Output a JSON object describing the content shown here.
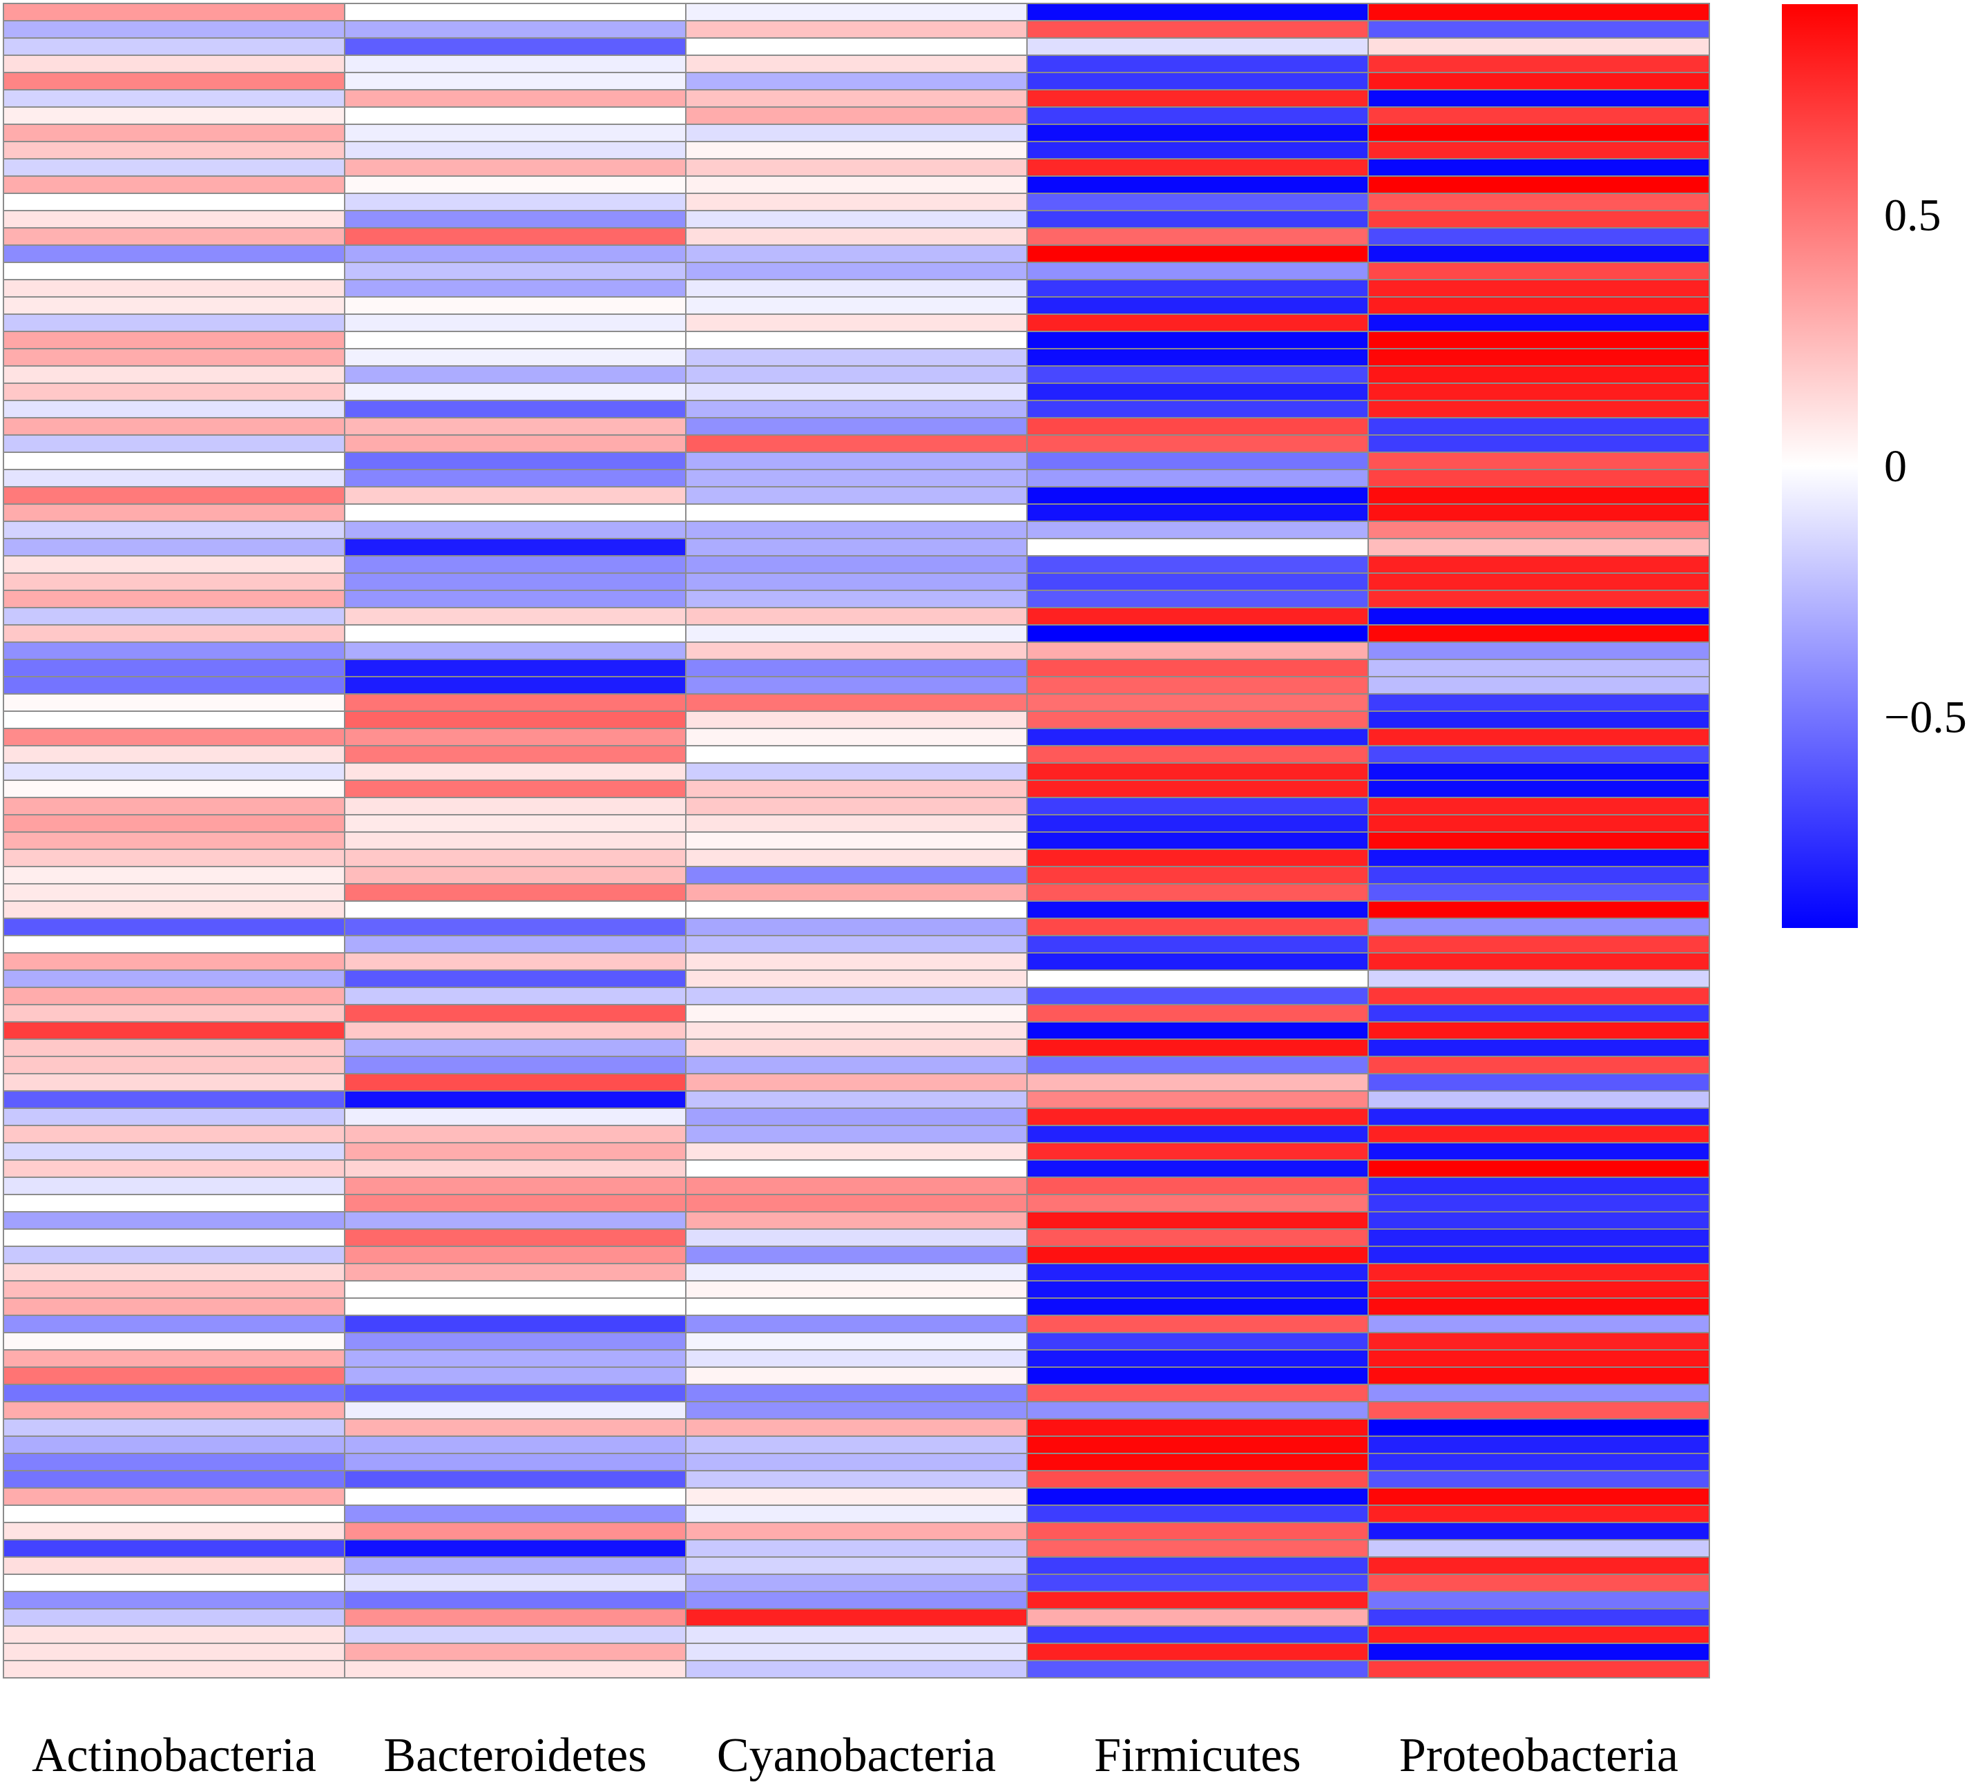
{
  "chart_data": {
    "type": "heatmap",
    "title": "",
    "xlabel": "",
    "ylabel": "",
    "columns": [
      "Actinobacteria",
      "Bacteroidetes",
      "Cyanobacteria",
      "Firmicutes",
      "Proteobacteria"
    ],
    "value_range": [
      -0.92,
      0.92
    ],
    "colorbar": {
      "ticks": [
        0.5,
        0,
        -0.5
      ],
      "tick_labels": [
        "0.5",
        "0",
        "−0.5"
      ],
      "colors": {
        "low": "#0000ff",
        "mid": "#ffffff",
        "high": "#ff0000"
      }
    },
    "values": [
      [
        0.36,
        0.0,
        -0.05,
        -0.89,
        0.9
      ],
      [
        -0.28,
        -0.3,
        0.22,
        0.62,
        -0.6
      ],
      [
        -0.18,
        -0.58,
        0.0,
        -0.12,
        0.12
      ],
      [
        0.12,
        -0.06,
        0.12,
        -0.7,
        0.74
      ],
      [
        0.44,
        -0.05,
        -0.28,
        -0.72,
        0.84
      ],
      [
        -0.16,
        0.3,
        0.22,
        0.78,
        -0.9
      ],
      [
        0.06,
        0.0,
        0.3,
        -0.7,
        0.7
      ],
      [
        0.3,
        -0.06,
        -0.12,
        -0.88,
        0.92
      ],
      [
        0.2,
        -0.1,
        0.04,
        -0.78,
        0.78
      ],
      [
        -0.16,
        0.28,
        0.18,
        0.78,
        -0.9
      ],
      [
        0.3,
        0.02,
        0.05,
        -0.9,
        0.92
      ],
      [
        0.0,
        -0.14,
        0.1,
        -0.58,
        0.6
      ],
      [
        0.1,
        -0.4,
        -0.1,
        -0.7,
        0.7
      ],
      [
        0.28,
        0.55,
        0.12,
        0.55,
        -0.65
      ],
      [
        -0.42,
        -0.32,
        -0.25,
        0.92,
        -0.88
      ],
      [
        0.0,
        -0.22,
        -0.3,
        -0.4,
        0.66
      ],
      [
        0.1,
        -0.32,
        -0.08,
        -0.72,
        0.8
      ],
      [
        0.08,
        0.02,
        -0.05,
        -0.8,
        0.82
      ],
      [
        -0.2,
        -0.06,
        0.1,
        0.8,
        -0.88
      ],
      [
        0.32,
        0.0,
        0.0,
        -0.9,
        0.92
      ],
      [
        0.3,
        -0.05,
        -0.2,
        -0.88,
        0.9
      ],
      [
        0.1,
        -0.3,
        -0.22,
        -0.66,
        0.84
      ],
      [
        0.2,
        -0.05,
        -0.1,
        -0.8,
        0.82
      ],
      [
        -0.1,
        -0.56,
        -0.28,
        -0.7,
        0.8
      ],
      [
        0.3,
        0.26,
        -0.4,
        0.66,
        -0.7
      ],
      [
        -0.2,
        0.3,
        0.58,
        0.6,
        -0.7
      ],
      [
        0.0,
        -0.52,
        -0.3,
        -0.5,
        0.62
      ],
      [
        -0.1,
        -0.44,
        -0.28,
        -0.36,
        0.68
      ],
      [
        0.48,
        0.18,
        -0.26,
        -0.9,
        0.88
      ],
      [
        0.3,
        0.0,
        0.0,
        -0.86,
        0.86
      ],
      [
        -0.16,
        -0.3,
        -0.3,
        -0.3,
        0.46
      ],
      [
        -0.28,
        -0.82,
        -0.3,
        0.0,
        0.24
      ],
      [
        0.1,
        -0.42,
        -0.36,
        -0.62,
        0.8
      ],
      [
        0.2,
        -0.4,
        -0.32,
        -0.66,
        0.8
      ],
      [
        0.3,
        -0.38,
        -0.26,
        -0.6,
        0.76
      ],
      [
        -0.2,
        0.16,
        0.2,
        0.8,
        -0.9
      ],
      [
        0.2,
        0.0,
        -0.05,
        -0.92,
        0.9
      ],
      [
        -0.4,
        -0.3,
        0.18,
        0.3,
        -0.4
      ],
      [
        -0.5,
        -0.82,
        -0.44,
        0.62,
        -0.24
      ],
      [
        -0.5,
        -0.82,
        -0.4,
        0.56,
        -0.24
      ],
      [
        0.02,
        0.5,
        0.5,
        0.52,
        -0.7
      ],
      [
        0.0,
        0.56,
        0.1,
        0.56,
        -0.8
      ],
      [
        0.42,
        0.4,
        0.04,
        -0.8,
        0.8
      ],
      [
        0.1,
        0.48,
        0.0,
        0.6,
        -0.66
      ],
      [
        -0.1,
        0.1,
        -0.18,
        0.8,
        -0.88
      ],
      [
        0.02,
        0.5,
        0.2,
        0.8,
        -0.88
      ],
      [
        0.3,
        0.1,
        0.2,
        -0.7,
        0.8
      ],
      [
        0.34,
        0.08,
        0.1,
        -0.8,
        0.82
      ],
      [
        0.28,
        0.1,
        0.04,
        -0.86,
        0.9
      ],
      [
        0.18,
        0.2,
        0.1,
        0.8,
        -0.86
      ],
      [
        0.06,
        0.24,
        -0.44,
        0.7,
        -0.7
      ],
      [
        0.08,
        0.5,
        0.3,
        0.6,
        -0.6
      ],
      [
        0.1,
        0.0,
        0.0,
        -0.88,
        0.92
      ],
      [
        -0.6,
        -0.56,
        -0.32,
        0.66,
        -0.4
      ],
      [
        0.0,
        -0.3,
        -0.24,
        -0.7,
        0.7
      ],
      [
        0.3,
        0.2,
        0.1,
        -0.82,
        0.8
      ],
      [
        -0.3,
        -0.6,
        0.1,
        0.0,
        -0.16
      ],
      [
        0.3,
        -0.2,
        -0.2,
        -0.62,
        0.72
      ],
      [
        0.2,
        0.6,
        0.04,
        0.6,
        -0.72
      ],
      [
        0.7,
        0.2,
        0.1,
        -0.9,
        0.84
      ],
      [
        0.2,
        -0.3,
        0.14,
        0.84,
        -0.82
      ],
      [
        0.2,
        -0.42,
        -0.3,
        -0.5,
        0.66
      ],
      [
        0.14,
        0.64,
        0.28,
        0.26,
        -0.6
      ],
      [
        -0.58,
        -0.86,
        -0.22,
        0.44,
        -0.22
      ],
      [
        -0.2,
        -0.06,
        -0.34,
        0.8,
        -0.8
      ],
      [
        0.2,
        0.24,
        -0.3,
        -0.8,
        0.8
      ],
      [
        -0.14,
        0.3,
        0.1,
        0.76,
        -0.86
      ],
      [
        0.18,
        0.16,
        0.0,
        -0.86,
        0.92
      ],
      [
        -0.1,
        0.38,
        0.4,
        0.6,
        -0.76
      ],
      [
        0.0,
        0.44,
        0.44,
        0.5,
        -0.72
      ],
      [
        -0.34,
        -0.3,
        0.3,
        0.84,
        -0.74
      ],
      [
        0.0,
        0.54,
        -0.12,
        0.6,
        -0.8
      ],
      [
        -0.2,
        0.4,
        -0.4,
        0.86,
        -0.8
      ],
      [
        0.14,
        0.3,
        -0.06,
        -0.8,
        0.8
      ],
      [
        0.24,
        0.0,
        0.04,
        -0.86,
        0.84
      ],
      [
        0.3,
        0.0,
        0.0,
        -0.88,
        0.88
      ],
      [
        -0.4,
        -0.68,
        -0.4,
        0.6,
        -0.36
      ],
      [
        0.02,
        -0.4,
        -0.04,
        -0.7,
        0.8
      ],
      [
        0.3,
        -0.3,
        -0.1,
        -0.84,
        0.84
      ],
      [
        0.5,
        -0.3,
        0.04,
        -0.9,
        0.88
      ],
      [
        -0.5,
        -0.58,
        -0.44,
        0.6,
        -0.4
      ],
      [
        0.3,
        -0.06,
        -0.4,
        -0.4,
        0.6
      ],
      [
        -0.2,
        0.28,
        0.28,
        0.86,
        -0.92
      ],
      [
        -0.3,
        -0.3,
        -0.22,
        0.9,
        -0.8
      ],
      [
        -0.46,
        -0.34,
        -0.26,
        0.9,
        -0.76
      ],
      [
        -0.5,
        -0.6,
        -0.2,
        0.64,
        -0.62
      ],
      [
        0.3,
        0.0,
        0.06,
        -0.9,
        0.9
      ],
      [
        0.0,
        -0.4,
        -0.06,
        -0.7,
        0.8
      ],
      [
        0.1,
        0.4,
        0.3,
        0.6,
        -0.84
      ],
      [
        -0.68,
        -0.86,
        -0.2,
        0.56,
        -0.2
      ],
      [
        0.12,
        -0.3,
        -0.16,
        -0.7,
        0.8
      ],
      [
        0.0,
        -0.1,
        -0.3,
        -0.66,
        0.62
      ],
      [
        -0.4,
        -0.5,
        -0.4,
        0.8,
        -0.5
      ],
      [
        -0.2,
        0.4,
        0.8,
        0.3,
        -0.7
      ],
      [
        0.1,
        -0.16,
        -0.1,
        -0.7,
        0.8
      ],
      [
        0.1,
        0.3,
        -0.1,
        0.8,
        -0.9
      ],
      [
        0.1,
        0.1,
        -0.2,
        -0.6,
        0.7
      ]
    ]
  }
}
